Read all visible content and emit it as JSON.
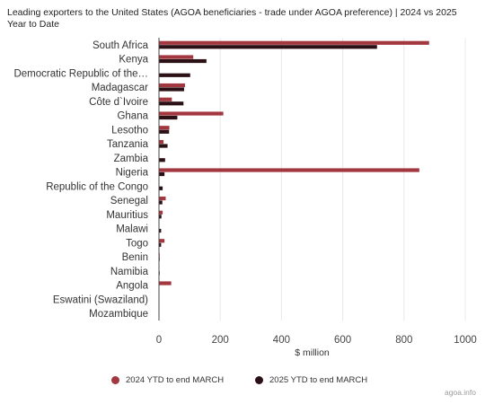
{
  "title": "Leading exporters to the United States (AGOA beneficiaries - trade under AGOA preference) | 2024 vs 2025 Year to Date",
  "source": "agoa.info",
  "colors": {
    "s2024": "#a3373f",
    "s2025": "#2b1016",
    "axis": "#444444",
    "grid": "#e8e8e8"
  },
  "chart_data": {
    "type": "bar",
    "orientation": "horizontal",
    "title": "Leading exporters to the United States (AGOA beneficiaries - trade under AGOA preference) | 2024 vs 2025 Year to Date",
    "xlabel": "$ million",
    "ylabel": "",
    "xlim": [
      0,
      1000
    ],
    "x_ticks": [
      "0",
      "200",
      "400",
      "600",
      "800",
      "1000"
    ],
    "legend_position": "bottom",
    "categories": [
      "South Africa",
      "Kenya",
      "Democratic Republic of the…",
      "Madagascar",
      "Côte d`Ivoire",
      "Ghana",
      "Lesotho",
      "Tanzania",
      "Zambia",
      "Nigeria",
      "Republic of the Congo",
      "Senegal",
      "Mauritius",
      "Malawi",
      "Togo",
      "Benin",
      "Namibia",
      "Angola",
      "Eswatini (Swaziland)",
      "Mozambique"
    ],
    "series": [
      {
        "name": "2024 YTD to end MARCH",
        "color": "#a3373f",
        "values": [
          882,
          112,
          0,
          85,
          42,
          210,
          34,
          15,
          0,
          850,
          0,
          22,
          12,
          0,
          18,
          2,
          0,
          40,
          0,
          0
        ]
      },
      {
        "name": "2025 YTD to end MARCH",
        "color": "#2b1016",
        "values": [
          712,
          155,
          102,
          82,
          80,
          60,
          33,
          28,
          20,
          18,
          12,
          11,
          8,
          7,
          7,
          2,
          1,
          0,
          0,
          0
        ]
      }
    ]
  }
}
